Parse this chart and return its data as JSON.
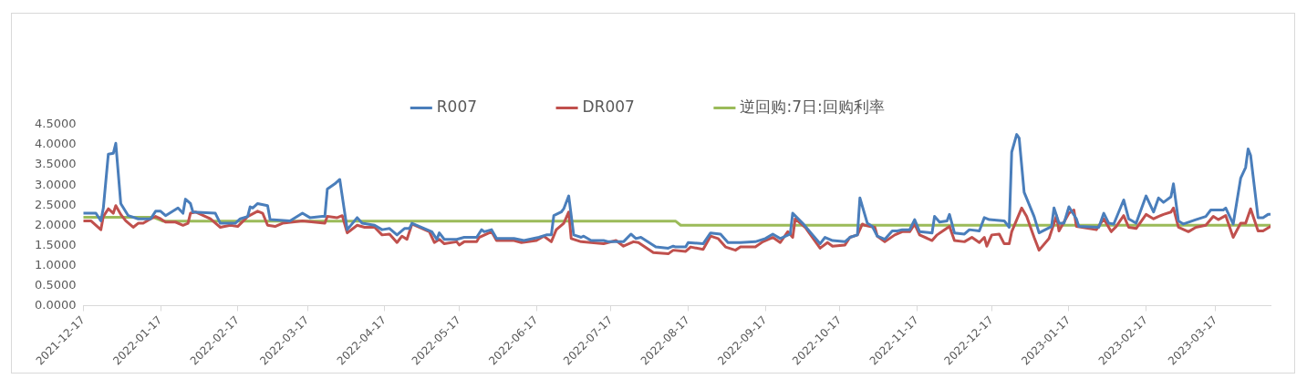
{
  "chart_data": {
    "type": "line",
    "legend": "top",
    "grid": false,
    "marker": "none",
    "line_style": "solid",
    "xlim": [
      "2021-12-17",
      "2023-04-08"
    ],
    "xticks": [
      "2021-12-17",
      "2022-01-17",
      "2022-02-17",
      "2022-03-17",
      "2022-04-17",
      "2022-05-17",
      "2022-06-17",
      "2022-07-17",
      "2022-08-17",
      "2022-09-17",
      "2022-10-17",
      "2022-11-17",
      "2022-12-17",
      "2023-01-17",
      "2023-02-17",
      "2023-03-17"
    ],
    "ylim": [
      0,
      4.5
    ],
    "yticks": [
      {
        "value": 0,
        "label": "0.0000"
      },
      {
        "value": 0.5,
        "label": "0.5000"
      },
      {
        "value": 1,
        "label": "1.0000"
      },
      {
        "value": 1.5,
        "label": "1.5000"
      },
      {
        "value": 2,
        "label": "2.0000"
      },
      {
        "value": 2.5,
        "label": "2.5000"
      },
      {
        "value": 3,
        "label": "3.0000"
      },
      {
        "value": 3.5,
        "label": "3.5000"
      },
      {
        "value": 4,
        "label": "4.0000"
      },
      {
        "value": 4.5,
        "label": "4.5000"
      }
    ],
    "series": [
      {
        "name": "R007",
        "color": "#4a7ebb",
        "x": [
          "2021-12-17",
          "2021-12-22",
          "2021-12-24",
          "2021-12-25",
          "2021-12-27",
          "2021-12-29",
          "2021-12-30",
          "2022-01-01",
          "2022-01-04",
          "2022-01-08",
          "2022-01-13",
          "2022-01-15",
          "2022-01-17",
          "2022-01-19",
          "2022-01-24",
          "2022-01-26",
          "2022-01-27",
          "2022-01-29",
          "2022-01-30",
          "2022-02-08",
          "2022-02-10",
          "2022-02-16",
          "2022-02-18",
          "2022-02-21",
          "2022-02-22",
          "2022-02-23",
          "2022-02-25",
          "2022-03-01",
          "2022-03-02",
          "2022-03-10",
          "2022-03-15",
          "2022-03-18",
          "2022-03-23",
          "2022-03-24",
          "2022-03-25",
          "2022-03-28",
          "2022-03-30",
          "2022-04-02",
          "2022-04-06",
          "2022-04-08",
          "2022-04-13",
          "2022-04-16",
          "2022-04-19",
          "2022-04-22",
          "2022-04-25",
          "2022-04-27",
          "2022-04-28",
          "2022-05-06",
          "2022-05-08",
          "2022-05-09",
          "2022-05-11",
          "2022-05-16",
          "2022-05-19",
          "2022-05-24",
          "2022-05-26",
          "2022-05-27",
          "2022-05-30",
          "2022-06-01",
          "2022-06-08",
          "2022-06-12",
          "2022-06-18",
          "2022-06-21",
          "2022-06-23",
          "2022-06-24",
          "2022-06-27",
          "2022-06-28",
          "2022-06-30",
          "2022-07-02",
          "2022-07-05",
          "2022-07-06",
          "2022-07-09",
          "2022-07-14",
          "2022-07-16",
          "2022-07-22",
          "2022-07-25",
          "2022-07-27",
          "2022-07-29",
          "2022-08-04",
          "2022-08-09",
          "2022-08-11",
          "2022-08-12",
          "2022-08-16",
          "2022-08-17",
          "2022-08-23",
          "2022-08-26",
          "2022-08-30",
          "2022-09-02",
          "2022-09-07",
          "2022-09-13",
          "2022-09-17",
          "2022-09-20",
          "2022-09-23",
          "2022-09-27",
          "2022-09-28",
          "2022-10-02",
          "2022-10-09",
          "2022-10-11",
          "2022-10-14",
          "2022-10-19",
          "2022-10-21",
          "2022-10-24",
          "2022-10-25",
          "2022-10-28",
          "2022-10-30",
          "2022-11-01",
          "2022-11-04",
          "2022-11-07",
          "2022-11-09",
          "2022-11-11",
          "2022-11-14",
          "2022-11-16",
          "2022-11-18",
          "2022-11-23",
          "2022-11-24",
          "2022-11-26",
          "2022-11-29",
          "2022-11-30",
          "2022-12-02",
          "2022-12-06",
          "2022-12-08",
          "2022-12-12",
          "2022-12-14",
          "2022-12-16",
          "2022-12-22",
          "2022-12-24",
          "2022-12-25",
          "2022-12-27",
          "2022-12-28",
          "2022-12-30",
          "2023-01-03",
          "2023-01-05",
          "2023-01-10",
          "2023-01-11",
          "2023-01-13",
          "2023-01-15",
          "2023-01-17",
          "2023-01-20",
          "2023-01-21",
          "2023-01-29",
          "2023-01-31",
          "2023-02-02",
          "2023-02-04",
          "2023-02-08",
          "2023-02-10",
          "2023-02-13",
          "2023-02-17",
          "2023-02-20",
          "2023-02-22",
          "2023-02-24",
          "2023-02-27",
          "2023-02-28",
          "2023-03-02",
          "2023-03-04",
          "2023-03-09",
          "2023-03-13",
          "2023-03-15",
          "2023-03-20",
          "2023-03-21",
          "2023-03-24",
          "2023-03-27",
          "2023-03-29",
          "2023-03-30",
          "2023-03-31",
          "2023-04-03",
          "2023-04-05",
          "2023-04-07",
          "2023-04-08"
        ],
        "values": [
          2.3,
          2.3,
          2.11,
          2.43,
          3.77,
          3.79,
          4.04,
          2.54,
          2.24,
          2.16,
          2.16,
          2.35,
          2.35,
          2.24,
          2.43,
          2.3,
          2.65,
          2.54,
          2.33,
          2.3,
          2.05,
          2.05,
          2.16,
          2.22,
          2.46,
          2.43,
          2.54,
          2.49,
          2.14,
          2.11,
          2.3,
          2.19,
          2.22,
          2.22,
          2.9,
          3.03,
          3.14,
          1.89,
          2.19,
          2.05,
          2.0,
          1.89,
          1.92,
          1.76,
          1.92,
          1.92,
          2.05,
          1.84,
          1.65,
          1.81,
          1.65,
          1.65,
          1.7,
          1.7,
          1.89,
          1.84,
          1.89,
          1.67,
          1.67,
          1.62,
          1.7,
          1.76,
          1.76,
          2.24,
          2.33,
          2.41,
          2.73,
          1.76,
          1.7,
          1.73,
          1.62,
          1.62,
          1.59,
          1.59,
          1.78,
          1.67,
          1.7,
          1.46,
          1.43,
          1.48,
          1.46,
          1.46,
          1.57,
          1.54,
          1.81,
          1.78,
          1.57,
          1.57,
          1.59,
          1.67,
          1.78,
          1.67,
          1.78,
          2.3,
          2.05,
          1.54,
          1.7,
          1.62,
          1.59,
          1.7,
          1.76,
          2.68,
          2.05,
          1.97,
          1.73,
          1.65,
          1.86,
          1.86,
          1.89,
          1.89,
          2.14,
          1.84,
          1.81,
          2.22,
          2.08,
          2.11,
          2.27,
          1.81,
          1.78,
          1.89,
          1.86,
          2.19,
          2.14,
          2.11,
          1.95,
          3.82,
          4.26,
          4.17,
          2.82,
          2.22,
          1.81,
          1.97,
          2.43,
          2.05,
          2.05,
          2.46,
          2.16,
          1.97,
          1.95,
          2.3,
          2.05,
          2.03,
          2.63,
          2.16,
          2.05,
          2.73,
          2.33,
          2.68,
          2.57,
          2.71,
          3.03,
          2.11,
          2.03,
          2.14,
          2.22,
          2.38,
          2.38,
          2.43,
          2.03,
          3.17,
          3.44,
          3.9,
          3.74,
          2.19,
          2.19,
          2.27,
          2.27
        ]
      },
      {
        "name": "DR007",
        "color": "#c0504d",
        "x": [
          "2021-12-17",
          "2021-12-20",
          "2021-12-24",
          "2021-12-25",
          "2021-12-27",
          "2021-12-29",
          "2021-12-30",
          "2022-01-01",
          "2022-01-03",
          "2022-01-06",
          "2022-01-08",
          "2022-01-10",
          "2022-01-13",
          "2022-01-15",
          "2022-01-17",
          "2022-01-19",
          "2022-01-23",
          "2022-01-26",
          "2022-01-28",
          "2022-01-29",
          "2022-01-31",
          "2022-02-06",
          "2022-02-10",
          "2022-02-14",
          "2022-02-17",
          "2022-02-21",
          "2022-02-25",
          "2022-02-27",
          "2022-03-01",
          "2022-03-04",
          "2022-03-07",
          "2022-03-15",
          "2022-03-24",
          "2022-03-25",
          "2022-03-29",
          "2022-03-31",
          "2022-04-02",
          "2022-04-06",
          "2022-04-09",
          "2022-04-13",
          "2022-04-16",
          "2022-04-19",
          "2022-04-22",
          "2022-04-24",
          "2022-04-26",
          "2022-04-28",
          "2022-05-05",
          "2022-05-07",
          "2022-05-09",
          "2022-05-11",
          "2022-05-16",
          "2022-05-17",
          "2022-05-19",
          "2022-05-24",
          "2022-05-25",
          "2022-05-30",
          "2022-06-01",
          "2022-06-08",
          "2022-06-11",
          "2022-06-17",
          "2022-06-20",
          "2022-06-23",
          "2022-06-25",
          "2022-06-28",
          "2022-06-30",
          "2022-07-01",
          "2022-07-05",
          "2022-07-09",
          "2022-07-14",
          "2022-07-19",
          "2022-07-22",
          "2022-07-26",
          "2022-07-28",
          "2022-08-03",
          "2022-08-09",
          "2022-08-11",
          "2022-08-16",
          "2022-08-18",
          "2022-08-23",
          "2022-08-26",
          "2022-08-29",
          "2022-09-01",
          "2022-09-05",
          "2022-09-07",
          "2022-09-13",
          "2022-09-16",
          "2022-09-20",
          "2022-09-23",
          "2022-09-26",
          "2022-09-28",
          "2022-09-29",
          "2022-10-03",
          "2022-10-09",
          "2022-10-12",
          "2022-10-14",
          "2022-10-19",
          "2022-10-21",
          "2022-10-24",
          "2022-10-26",
          "2022-10-27",
          "2022-10-29",
          "2022-10-31",
          "2022-11-01",
          "2022-11-04",
          "2022-11-08",
          "2022-11-11",
          "2022-11-14",
          "2022-11-16",
          "2022-11-18",
          "2022-11-23",
          "2022-11-25",
          "2022-11-30",
          "2022-12-02",
          "2022-12-06",
          "2022-12-09",
          "2022-12-12",
          "2022-12-14",
          "2022-12-15",
          "2022-12-17",
          "2022-12-20",
          "2022-12-22",
          "2022-12-24",
          "2022-12-25",
          "2022-12-29",
          "2022-12-31",
          "2023-01-03",
          "2023-01-05",
          "2023-01-09",
          "2023-01-12",
          "2023-01-13",
          "2023-01-17",
          "2023-01-19",
          "2023-01-20",
          "2023-01-28",
          "2023-01-31",
          "2023-02-03",
          "2023-02-05",
          "2023-02-08",
          "2023-02-10",
          "2023-02-13",
          "2023-02-17",
          "2023-02-20",
          "2023-02-22",
          "2023-02-24",
          "2023-02-27",
          "2023-02-28",
          "2023-03-02",
          "2023-03-06",
          "2023-03-09",
          "2023-03-13",
          "2023-03-16",
          "2023-03-18",
          "2023-03-21",
          "2023-03-24",
          "2023-03-27",
          "2023-03-29",
          "2023-03-31",
          "2023-04-03",
          "2023-04-05",
          "2023-04-08"
        ],
        "values": [
          2.11,
          2.11,
          1.89,
          2.22,
          2.41,
          2.3,
          2.49,
          2.27,
          2.11,
          1.95,
          2.05,
          2.05,
          2.16,
          2.22,
          2.16,
          2.08,
          2.08,
          2.0,
          2.05,
          2.3,
          2.33,
          2.16,
          1.95,
          2.0,
          1.97,
          2.22,
          2.35,
          2.3,
          2.0,
          1.97,
          2.05,
          2.11,
          2.05,
          2.22,
          2.19,
          2.24,
          1.81,
          2.0,
          1.95,
          1.95,
          1.76,
          1.78,
          1.57,
          1.73,
          1.65,
          2.03,
          1.84,
          1.57,
          1.65,
          1.54,
          1.59,
          1.51,
          1.59,
          1.59,
          1.7,
          1.84,
          1.62,
          1.62,
          1.57,
          1.62,
          1.73,
          1.59,
          1.89,
          2.05,
          2.33,
          1.67,
          1.59,
          1.57,
          1.54,
          1.62,
          1.48,
          1.59,
          1.57,
          1.32,
          1.29,
          1.38,
          1.35,
          1.46,
          1.4,
          1.73,
          1.67,
          1.46,
          1.38,
          1.46,
          1.46,
          1.59,
          1.7,
          1.57,
          1.84,
          1.7,
          2.16,
          1.95,
          1.43,
          1.57,
          1.48,
          1.51,
          1.7,
          1.76,
          2.03,
          2.0,
          1.97,
          1.95,
          1.73,
          1.59,
          1.76,
          1.84,
          1.84,
          2.03,
          1.76,
          1.62,
          1.76,
          1.97,
          1.62,
          1.59,
          1.7,
          1.57,
          1.7,
          1.48,
          1.76,
          1.78,
          1.54,
          1.54,
          1.84,
          2.43,
          2.22,
          1.7,
          1.38,
          1.67,
          2.24,
          1.86,
          2.3,
          2.38,
          1.97,
          1.89,
          2.16,
          1.84,
          1.97,
          2.24,
          1.95,
          1.92,
          2.27,
          2.16,
          2.22,
          2.27,
          2.33,
          2.43,
          1.95,
          1.84,
          1.95,
          2.0,
          2.22,
          2.14,
          2.24,
          1.7,
          2.05,
          2.05,
          2.41,
          1.86,
          1.86,
          1.97
        ]
      },
      {
        "name": "逆回购:7日:回购利率",
        "color": "#9bbb59",
        "x": [
          "2021-12-17",
          "2022-01-14",
          "2022-01-18",
          "2022-08-12",
          "2022-08-14",
          "2023-04-08"
        ],
        "values": [
          2.2,
          2.2,
          2.1,
          2.1,
          2.0,
          2.0
        ]
      }
    ]
  }
}
